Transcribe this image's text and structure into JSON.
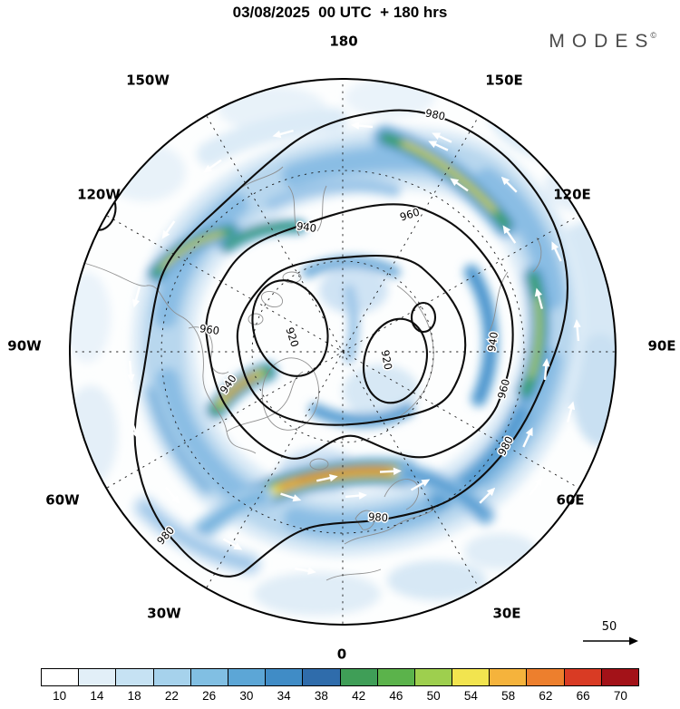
{
  "header": {
    "title": "03/08/2025  00 UTC  + 180 hrs",
    "logo_text": "MODES",
    "logo_mark": "©"
  },
  "map": {
    "meridian_labels": [
      "180",
      "150W",
      "150E",
      "120W",
      "120E",
      "90W",
      "90E",
      "60W",
      "60E",
      "30W",
      "30E",
      "0"
    ],
    "isobars": {
      "p980": "980",
      "p960": "960",
      "p940": "940",
      "p920": "920"
    },
    "reference_vector_label": "50"
  },
  "colorbar": {
    "ticks": [
      "10",
      "14",
      "18",
      "22",
      "26",
      "30",
      "34",
      "38",
      "42",
      "46",
      "50",
      "54",
      "58",
      "62",
      "66",
      "70"
    ],
    "colors": [
      "#ffffff",
      "#e2eff8",
      "#c6e2f3",
      "#a6d2ec",
      "#81bfe3",
      "#5ca6d6",
      "#408cc6",
      "#2f6cab",
      "#3f9e57",
      "#5bb34b",
      "#9ecf4e",
      "#f2e44f",
      "#f5b33c",
      "#ed7f2d",
      "#d93b24",
      "#a31218"
    ]
  },
  "chart_data": {
    "type": "heatmap",
    "title": "03/08/2025 00 UTC + 180 hrs",
    "projection": "north-polar-stereographic",
    "meridian_labels": [
      "180",
      "150W",
      "150E",
      "120W",
      "120E",
      "90W",
      "90E",
      "60W",
      "60E",
      "30W",
      "30E",
      "0"
    ],
    "shading_levels": [
      10,
      14,
      18,
      22,
      26,
      30,
      34,
      38,
      42,
      46,
      50,
      54,
      58,
      62,
      66,
      70
    ],
    "shading_colors": [
      "#ffffff",
      "#e2eff8",
      "#c6e2f3",
      "#a6d2ec",
      "#81bfe3",
      "#5ca6d6",
      "#408cc6",
      "#2f6cab",
      "#3f9e57",
      "#5bb34b",
      "#9ecf4e",
      "#f2e44f",
      "#f5b33c",
      "#ed7f2d",
      "#d93b24",
      "#a31218"
    ],
    "contour_values_visible": [
      920,
      940,
      960,
      980
    ],
    "reference_vector_value": 50,
    "legend_position": "bottom",
    "watermark": "MODES©"
  }
}
